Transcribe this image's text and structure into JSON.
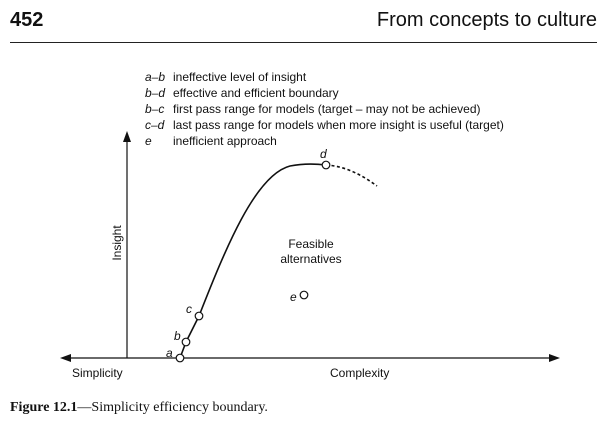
{
  "header": {
    "page_number": "452",
    "running_head": "From concepts to culture"
  },
  "figure": {
    "legend": [
      {
        "key": "a–b",
        "text": "ineffective level of insight"
      },
      {
        "key": "b–d",
        "text": "effective and efficient boundary"
      },
      {
        "key": "b–c",
        "text": "first pass range for models (target – may not be achieved)"
      },
      {
        "key": "c–d",
        "text": "last pass range for models when more insight is useful (target)"
      },
      {
        "key": "e",
        "text": "inefficient approach"
      }
    ],
    "axes": {
      "y_label": "Insight",
      "x_left_label": "Simplicity",
      "x_right_label": "Complexity"
    },
    "points": {
      "a": "a",
      "b": "b",
      "c": "c",
      "d": "d",
      "e": "e"
    },
    "region_label_line1": "Feasible",
    "region_label_line2": "alternatives"
  },
  "caption": {
    "label": "Figure 12.1",
    "text": "—Simplicity efficiency boundary."
  }
}
